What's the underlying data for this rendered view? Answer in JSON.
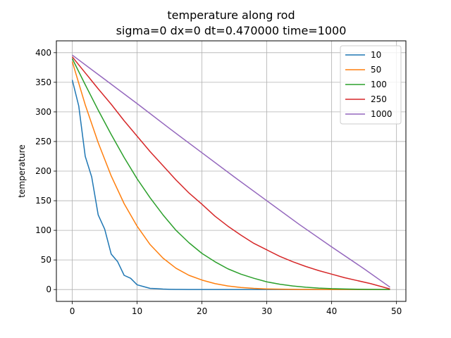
{
  "chart_data": {
    "type": "line",
    "title_line1": "temperature along rod",
    "title_line2": "sigma=0 dx=0 dt=0.470000 time=1000",
    "xlabel": "",
    "ylabel": "temperature",
    "xlim": [
      -2.45,
      51.45
    ],
    "ylim": [
      -20,
      420
    ],
    "xticks": [
      0,
      10,
      20,
      30,
      40,
      50
    ],
    "yticks": [
      0,
      50,
      100,
      150,
      200,
      250,
      300,
      350,
      400
    ],
    "grid": true,
    "legend_position": "upper-right",
    "series": [
      {
        "name": "10",
        "color": "#1f77b4",
        "x": [
          0,
          1,
          2,
          3,
          4,
          5,
          6,
          7,
          8,
          9,
          10,
          11,
          12,
          13,
          14,
          15,
          16,
          18,
          20,
          25,
          30,
          35,
          40,
          45,
          49
        ],
        "y": [
          354,
          310,
          225,
          190,
          126,
          102,
          60,
          47,
          24,
          19,
          8,
          5,
          2,
          1.5,
          0.8,
          0.4,
          0.2,
          0.1,
          0,
          0,
          0,
          0,
          0,
          0,
          0
        ]
      },
      {
        "name": "50",
        "color": "#ff7f0e",
        "x": [
          0,
          2,
          4,
          6,
          8,
          10,
          12,
          14,
          16,
          18,
          20,
          22,
          24,
          26,
          28,
          30,
          32,
          35,
          40,
          45,
          49
        ],
        "y": [
          385,
          312,
          248,
          192,
          145,
          107,
          76,
          53,
          36,
          24,
          16,
          10,
          6,
          3.5,
          2,
          1,
          0.6,
          0.2,
          0.05,
          0,
          0
        ]
      },
      {
        "name": "100",
        "color": "#2ca02c",
        "x": [
          0,
          2,
          4,
          6,
          8,
          10,
          12,
          14,
          16,
          18,
          20,
          22,
          24,
          26,
          28,
          30,
          32,
          34,
          36,
          38,
          40,
          42,
          44,
          46,
          49
        ],
        "y": [
          390,
          346,
          303,
          262,
          223,
          187,
          155,
          126,
          100,
          79,
          61,
          47,
          35,
          26,
          19,
          13,
          9,
          6,
          4,
          2.5,
          1.5,
          1,
          0.5,
          0.2,
          0
        ]
      },
      {
        "name": "250",
        "color": "#d62728",
        "x": [
          0,
          2,
          4,
          6,
          8,
          10,
          12,
          14,
          16,
          18,
          20,
          22,
          24,
          26,
          28,
          30,
          32,
          34,
          36,
          38,
          40,
          42,
          44,
          46,
          49
        ],
        "y": [
          393,
          366,
          339,
          313,
          285,
          259,
          233,
          209,
          185,
          163,
          144,
          124,
          107,
          92,
          78,
          67,
          56,
          47,
          39,
          32,
          26,
          20,
          15,
          10,
          1
        ]
      },
      {
        "name": "1000",
        "color": "#9467bd",
        "x": [
          0,
          5,
          10,
          15,
          20,
          25,
          30,
          35,
          40,
          45,
          49
        ],
        "y": [
          396,
          355,
          314,
          272,
          231,
          190,
          150,
          110,
          72,
          35,
          4
        ]
      }
    ]
  }
}
